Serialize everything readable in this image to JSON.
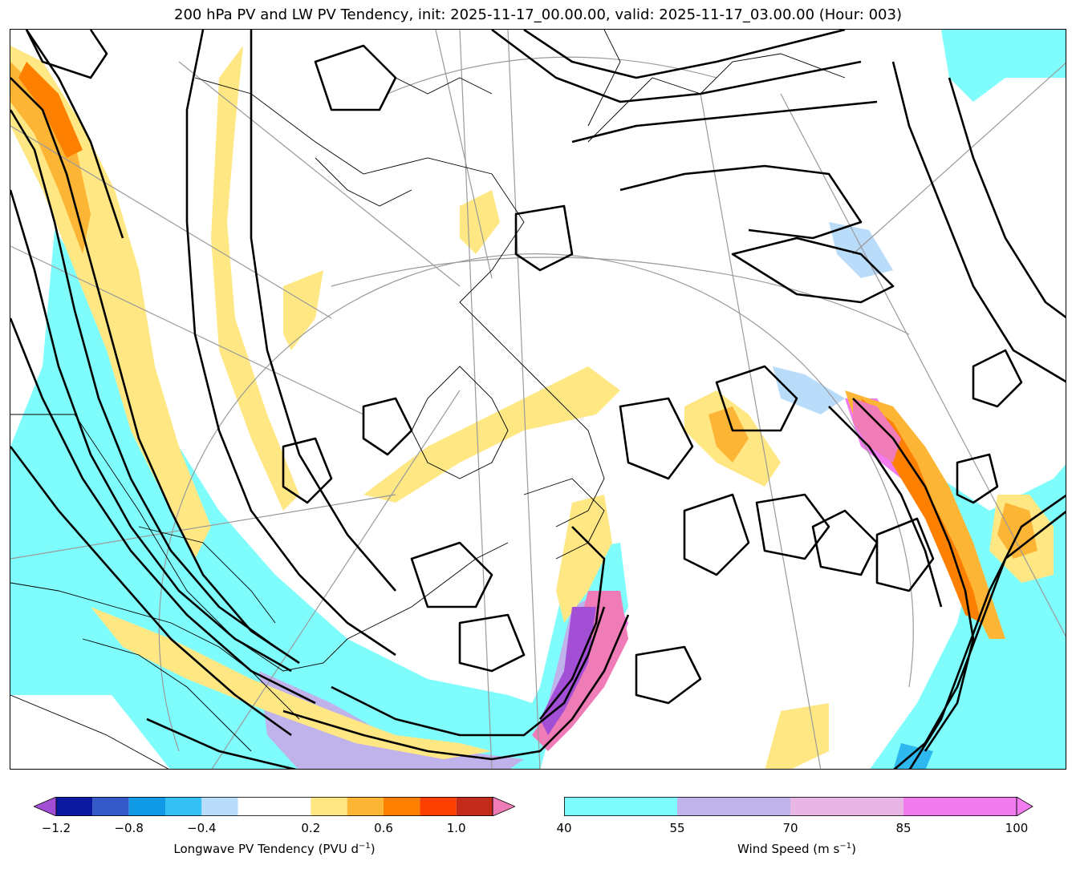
{
  "title": "200 hPa PV and LW PV Tendency, init: 2025-11-17_00.00.00, valid: 2025-11-17_03.00.00 (Hour: 003)",
  "map": {
    "field_contours": "200 hPa PV",
    "fill_1": "Longwave PV Tendency",
    "fill_2": "Wind Speed",
    "colors": {
      "contour": "#000000",
      "coast": "#000000",
      "grid": "#9a9a9a",
      "wind_40_55": "#7ffcfc",
      "wind_55_70": "#c0b2ea",
      "wind_70_85": "#e8b6e4",
      "wind_85_100": "#f27bf0",
      "tend_pos_low": "#ffe784",
      "tend_pos_mid": "#fdb535",
      "tend_pos_high": "#fd8000",
      "tend_neg_low": "#b9dcfa",
      "tend_neg_mid": "#2db8ef",
      "tend_neg_high": "#3559c8"
    }
  },
  "colorbar_pv": {
    "label_main": "Longwave PV Tendency (PVU d",
    "label_exp": "−1",
    "label_end": ")",
    "ticks": [
      "−1.2",
      "−0.8",
      "−0.4",
      "0.2",
      "0.6",
      "1.0"
    ],
    "tick_values": [
      -1.2,
      -0.8,
      -0.4,
      0.2,
      0.6,
      1.0
    ],
    "bounds": [
      -1.2,
      -1.0,
      -0.8,
      -0.6,
      -0.4,
      -0.2,
      0.2,
      0.4,
      0.6,
      0.8,
      1.0,
      1.2
    ],
    "colors": [
      "#0b1aa0",
      "#3559c8",
      "#109ae6",
      "#37c0f3",
      "#b9dcfa",
      "#ffffff",
      "#ffe784",
      "#fdb535",
      "#fd8000",
      "#fd4000",
      "#c22a1a"
    ],
    "under_color": "#a24fd6",
    "over_color": "#f07cb7"
  },
  "colorbar_wind": {
    "label_main": "Wind Speed (m s",
    "label_exp": "−1",
    "label_end": ")",
    "ticks": [
      "40",
      "55",
      "70",
      "85",
      "100"
    ],
    "tick_values": [
      40,
      55,
      70,
      85,
      100
    ],
    "colors": [
      "#7ffcfc",
      "#c0b2ea",
      "#e8b6e4",
      "#f27bf0"
    ],
    "over_color": "#f27bf0"
  }
}
